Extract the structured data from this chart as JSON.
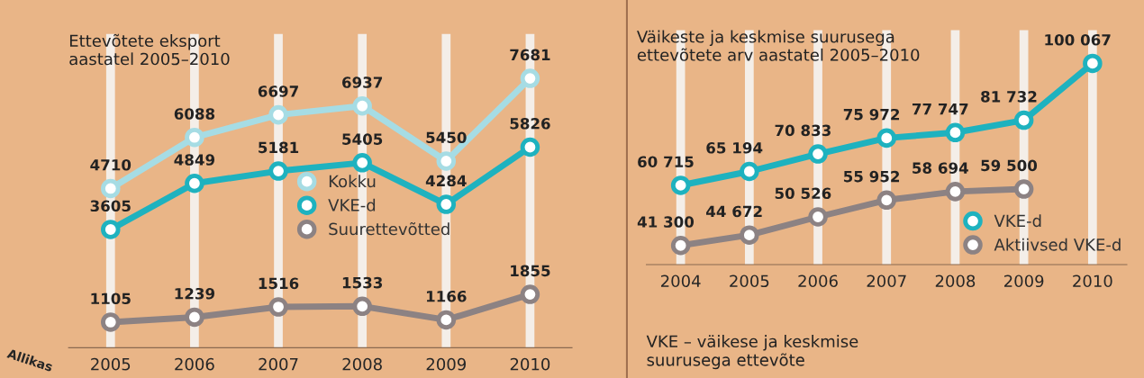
{
  "chart_data": [
    {
      "type": "line",
      "title": "Ettevõtete eksport\naastatel 2005–2010",
      "categories": [
        "2005",
        "2006",
        "2007",
        "2008",
        "2009",
        "2010"
      ],
      "tick_labels": "x",
      "grid": "x",
      "marker": "circle",
      "line_style": "solid",
      "legend": "center",
      "data_labels": true,
      "series": [
        {
          "name": "Kokku",
          "color": "#a6dce4",
          "values": [
            4710,
            6088,
            6697,
            6937,
            5450,
            7681
          ]
        },
        {
          "name": "VKE-d",
          "color": "#1eb2bf",
          "values": [
            3605,
            4849,
            5181,
            5405,
            4284,
            5826
          ]
        },
        {
          "name": "Suurettevõtted",
          "color": "#8c8283",
          "values": [
            1105,
            1239,
            1516,
            1533,
            1166,
            1855
          ]
        }
      ],
      "annotations": [
        "Allikas"
      ]
    },
    {
      "type": "line",
      "title": "Väikeste ja keskmise suurusega\nettevõtete arv aastatel 2005–2010",
      "categories": [
        "2004",
        "2005",
        "2006",
        "2007",
        "2008",
        "2009",
        "2010"
      ],
      "tick_labels": "x",
      "grid": "x",
      "marker": "circle",
      "line_style": "solid",
      "legend": "right",
      "series": [
        {
          "name": "VKE-d",
          "color": "#1eb2bf",
          "values": [
            60715,
            65194,
            70833,
            75972,
            77747,
            81732,
            100067
          ],
          "value_labels": [
            "60 715",
            "65 194",
            "70 833",
            "75 972",
            "77 747",
            "81 732",
            "100 067"
          ]
        },
        {
          "name": "Aktiivsed VKE-d",
          "color": "#8c8283",
          "values": [
            41300,
            44672,
            50526,
            55952,
            58694,
            59500,
            null
          ],
          "value_labels": [
            "41 300",
            "44 672",
            "50 526",
            "55 952",
            "58 694",
            "59 500",
            null
          ]
        }
      ],
      "annotations": [
        "VKE – väikese ja keskmise\nsuurusega ettevõte"
      ]
    }
  ]
}
